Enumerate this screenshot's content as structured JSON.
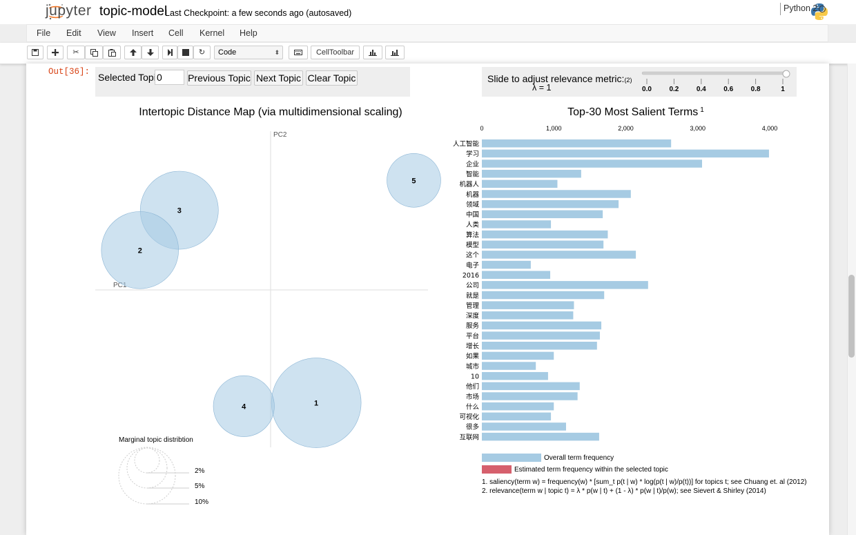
{
  "header": {
    "logo_text": "jupyter",
    "notebook_name": "topic-model",
    "checkpoint": "Last Checkpoint: a few seconds ago (autosaved)"
  },
  "menu": {
    "items": [
      "File",
      "Edit",
      "View",
      "Insert",
      "Cell",
      "Kernel",
      "Help"
    ],
    "kernel_name": "Python 2"
  },
  "toolbar": {
    "cell_type": "Code",
    "celltoolbar_label": "CellToolbar",
    "icons": [
      "save-icon",
      "plus-icon",
      "scissors-icon",
      "copy-icon",
      "paste-icon",
      "arrow-up-icon",
      "arrow-down-icon",
      "step-forward-icon",
      "stop-icon",
      "refresh-icon",
      "keyboard-icon",
      "bar-chart-icon",
      "bar-chart-icon"
    ]
  },
  "cell": {
    "prompt": "Out[36]:"
  },
  "ldavis": {
    "selected_topic_label": "Selected Topic:",
    "selected_topic_value": "0",
    "prev_label": "Previous Topic",
    "next_label": "Next Topic",
    "clear_label": "Clear Topic",
    "slider_label": "Slide to adjust relevance metric:",
    "slider_ref": "(2)",
    "lambda_text": "λ = 1",
    "lambda_value": 1,
    "slider_ticks": [
      "0.0",
      "0.2",
      "0.4",
      "0.6",
      "0.8",
      "1"
    ],
    "map_title": "Intertopic Distance Map (via multidimensional scaling)",
    "pc1_label": "PC1",
    "pc2_label": "PC2",
    "marginal_title": "Marginal topic distribtion",
    "marginal_labels": [
      "2%",
      "5%",
      "10%"
    ],
    "bar_title": "Top-30 Most Salient Terms",
    "bar_title_sup": "1",
    "legend_overall": "Overall term frequency",
    "legend_estimated": "Estimated term frequency within the selected topic",
    "footnote1": "1. saliency(term w) = frequency(w) * [sum_t p(t | w) * log(p(t | w)/p(t))] for topics t; see Chuang et. al (2012)",
    "footnote2": "2. relevance(term w | topic t) = λ * p(w | t) + (1 - λ) * p(w | t)/p(w); see Sievert & Shirley (2014)"
  },
  "chart_data": [
    {
      "type": "scatter",
      "title": "Intertopic Distance Map (via multidimensional scaling)",
      "xlabel": "PC1",
      "ylabel": "PC2",
      "points": [
        {
          "label": "1",
          "pc1": 0.29,
          "pc2": -0.34,
          "relative_size": 1.0
        },
        {
          "label": "2",
          "pc1": -0.83,
          "pc2": 0.12,
          "relative_size": 0.86
        },
        {
          "label": "3",
          "pc1": -0.58,
          "pc2": 0.24,
          "relative_size": 0.87
        },
        {
          "label": "4",
          "pc1": -0.17,
          "pc2": -0.35,
          "relative_size": 0.68
        },
        {
          "label": "5",
          "pc1": 0.91,
          "pc2": 0.33,
          "relative_size": 0.6
        }
      ]
    },
    {
      "type": "bar",
      "title": "Top-30 Most Salient Terms",
      "xlim": [
        0,
        4000
      ],
      "x_ticks": [
        "0",
        "1,000",
        "2,000",
        "3,000",
        "4,000"
      ],
      "categories": [
        "人工智能",
        "学习",
        "企业",
        "智能",
        "机器人",
        "机器",
        "领域",
        "中国",
        "人类",
        "算法",
        "模型",
        "这个",
        "电子",
        "2016",
        "公司",
        "就是",
        "管理",
        "深度",
        "服务",
        "平台",
        "增长",
        "如果",
        "城市",
        "10",
        "他们",
        "市场",
        "什么",
        "可视化",
        "很多",
        "互联网"
      ],
      "series": [
        {
          "name": "Overall term frequency",
          "values": [
            2630,
            3990,
            3060,
            1380,
            1050,
            2070,
            1900,
            1680,
            960,
            1750,
            1690,
            2140,
            680,
            950,
            2310,
            1700,
            1280,
            1270,
            1660,
            1640,
            1600,
            1000,
            750,
            920,
            1360,
            1330,
            1000,
            960,
            1170,
            1630
          ]
        }
      ],
      "colors": {
        "overall": "#a6cbe3",
        "estimated": "#d6606d"
      }
    }
  ]
}
